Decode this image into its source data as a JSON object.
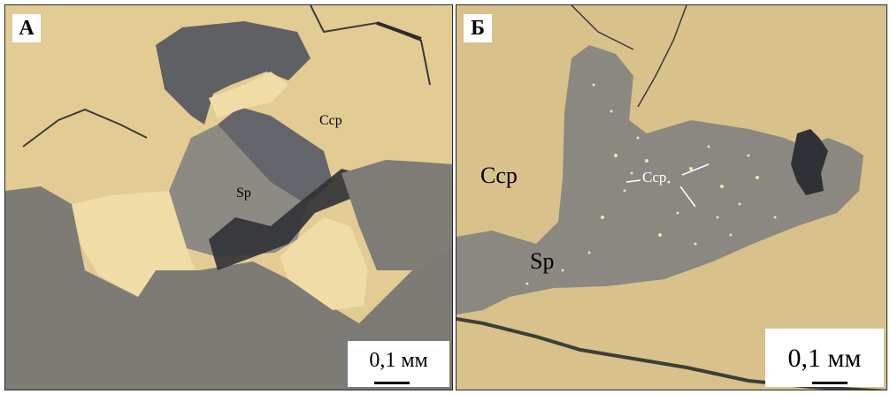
{
  "panels": [
    {
      "id": "A",
      "label": "А",
      "minerals": [
        {
          "text": "Ccp"
        },
        {
          "text": "Sp"
        }
      ],
      "scale_label": "0,1 мм"
    },
    {
      "id": "B",
      "label": "Б",
      "minerals": [
        {
          "text": "Ccp"
        },
        {
          "text": "Ccp"
        },
        {
          "text": "Sp"
        }
      ],
      "scale_label": "0,1 мм"
    }
  ],
  "colors": {
    "chalcopyrite": "#e6cf94",
    "chalcopyrite_light": "#f0dca8",
    "sphalerite": "#8c8a82",
    "sphalerite_dark": "#6e6c66",
    "gangue": "#7f7d78",
    "pore": "#2e3034"
  }
}
